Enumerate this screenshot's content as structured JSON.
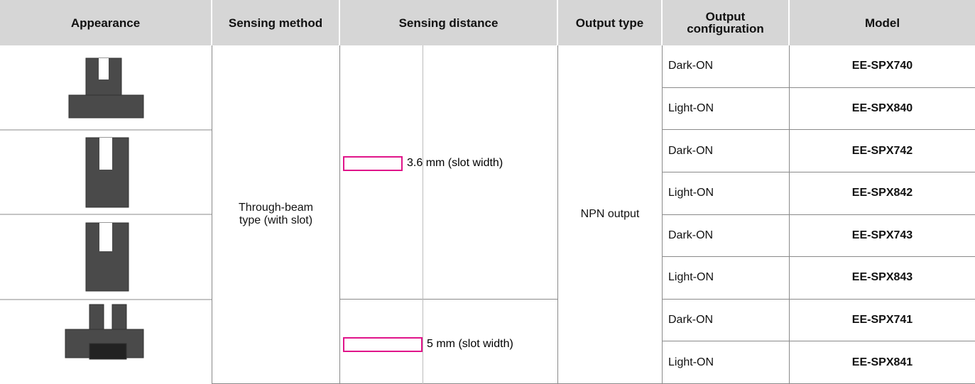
{
  "table": {
    "headers": [
      "Appearance",
      "Sensing method",
      "Sensing distance",
      "Output type",
      "Output configuration",
      "Model"
    ],
    "sensing_method": "Through-beam type (with slot)",
    "sensing_distances": [
      "3.6 mm (slot width)",
      "5 mm (slot width)"
    ],
    "output_type": "NPN output",
    "rows": [
      [
        "Dark-ON",
        "EE-SPX740"
      ],
      [
        "Light-ON",
        "EE-SPX840"
      ],
      [
        "Dark-ON",
        "EE-SPX742"
      ],
      [
        "Light-ON",
        "EE-SPX842"
      ],
      [
        "Dark-ON",
        "EE-SPX743"
      ],
      [
        "Light-ON",
        "EE-SPX843"
      ],
      [
        "Dark-ON",
        "EE-SPX741"
      ],
      [
        "Light-ON",
        "EE-SPX841"
      ]
    ]
  }
}
